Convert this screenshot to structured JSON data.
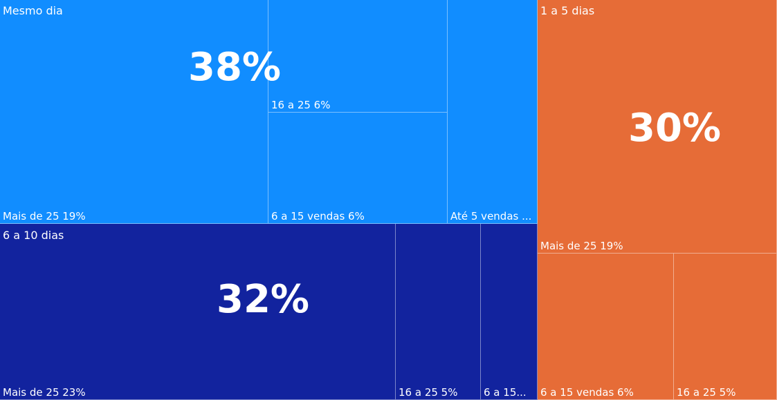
{
  "chart_data": {
    "type": "treemap",
    "title": "",
    "colors": {
      "mesmo_dia": "#118dff",
      "1_a_5_dias": "#e66c37",
      "6_a_10_dias": "#12239e",
      "divider": "rgba(255,255,255,0.45)"
    },
    "groups": [
      {
        "id": "mesmo_dia",
        "name": "Mesmo dia",
        "percent_label": "38%",
        "value": 38,
        "children": [
          {
            "label": "Mais de 25 19%",
            "name": "Mais de 25",
            "value": 19
          },
          {
            "label": "16 a 25 6%",
            "name": "16 a 25",
            "value": 6
          },
          {
            "label": "6 a 15 vendas 6%",
            "name": "6 a 15 vendas",
            "value": 6
          },
          {
            "label": "Até 5 vendas ...",
            "name": "Até 5 vendas",
            "value": 7
          }
        ]
      },
      {
        "id": "6_a_10_dias",
        "name": "6 a 10 dias",
        "percent_label": "32%",
        "value": 32,
        "children": [
          {
            "label": "Mais de 25 23%",
            "name": "Mais de 25",
            "value": 23
          },
          {
            "label": "16 a 25 5%",
            "name": "16 a 25",
            "value": 5
          },
          {
            "label": "6 a 15...",
            "name": "6 a 15 vendas",
            "value": 4
          }
        ]
      },
      {
        "id": "1_a_5_dias",
        "name": "1 a 5 dias",
        "percent_label": "30%",
        "value": 30,
        "children": [
          {
            "label": "Mais de 25 19%",
            "name": "Mais de 25",
            "value": 19
          },
          {
            "label": "6 a 15 vendas 6%",
            "name": "6 a 15 vendas",
            "value": 6
          },
          {
            "label": "16 a 25 5%",
            "name": "16 a 25",
            "value": 5
          }
        ]
      }
    ]
  }
}
